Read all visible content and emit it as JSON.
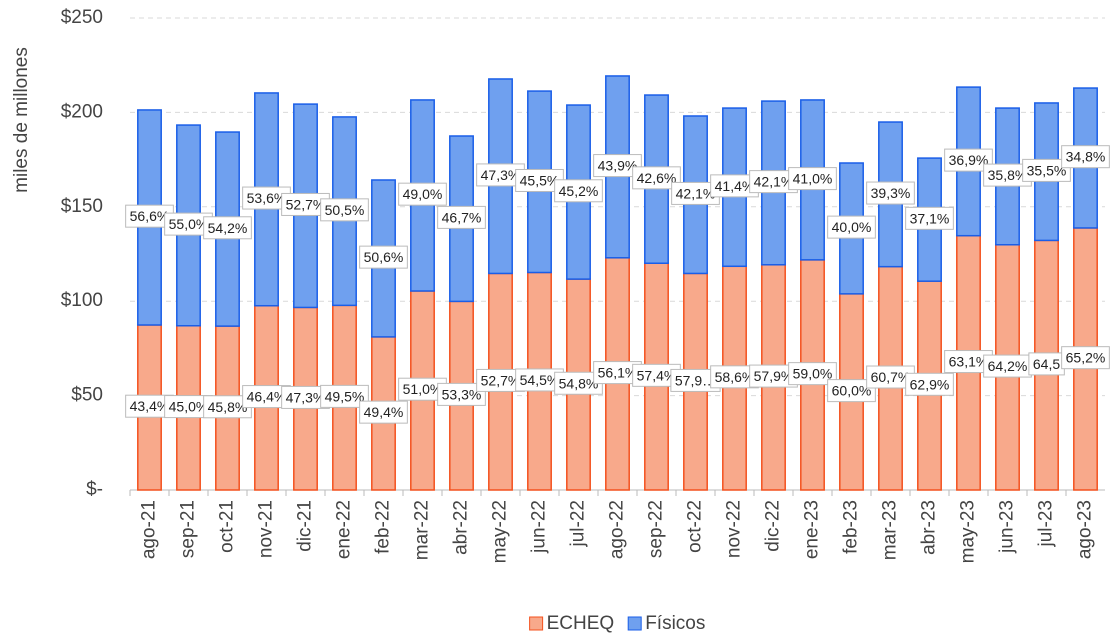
{
  "chart_data": {
    "type": "stacked_bar",
    "y_label": "miles de millones",
    "categories": [
      "ago-21",
      "sep-21",
      "oct-21",
      "nov-21",
      "dic-21",
      "ene-22",
      "feb-22",
      "mar-22",
      "abr-22",
      "may-22",
      "jun-22",
      "jul-22",
      "ago-22",
      "sep-22",
      "oct-22",
      "nov-22",
      "dic-22",
      "ene-23",
      "feb-23",
      "mar-23",
      "abr-23",
      "may-23",
      "jun-23",
      "jul-23",
      "ago-23"
    ],
    "series": [
      {
        "name": "ECHEQ",
        "color": "#f8a98b",
        "stroke": "#f4511e",
        "values": [
          87.4,
          87.0,
          86.8,
          97.6,
          96.7,
          97.8,
          81.1,
          105.4,
          99.9,
          114.7,
          115.2,
          111.7,
          123.0,
          120.1,
          114.7,
          118.5,
          119.3,
          121.9,
          103.9,
          118.3,
          110.6,
          134.7,
          129.9,
          132.2,
          138.8
        ],
        "data_labels": [
          "43,4%",
          "45,0%",
          "45,8%",
          "46,4%",
          "47,3%",
          "49,5%",
          "49,4%",
          "51,0%",
          "53,3%",
          "52,7%",
          "54,5%",
          "54,8%",
          "56,1%",
          "57,4%",
          "57,9…",
          "58,6%",
          "57,9%",
          "59,0%",
          "60,0%",
          "60,7%",
          "62,9%",
          "63,1%",
          "64,2%",
          "64,5",
          "65,2%"
        ]
      },
      {
        "name": "Físicos",
        "color": "#6fa0ef",
        "stroke": "#1a5ee8",
        "values": [
          113.9,
          106.3,
          102.8,
          112.7,
          107.7,
          99.8,
          83.1,
          101.2,
          87.6,
          103.0,
          96.1,
          92.2,
          96.3,
          89.1,
          83.4,
          83.8,
          86.7,
          84.7,
          69.3,
          76.6,
          65.2,
          78.7,
          72.4,
          72.8,
          74.1
        ],
        "data_labels": [
          "56,6%",
          "55,0%",
          "54,2%",
          "53,6%",
          "52,7%",
          "50,5%",
          "50,6%",
          "49,0%",
          "46,7%",
          "47,3%",
          "45,5%",
          "45,2%",
          "43,9%",
          "42,6%",
          "42,1%",
          "41,4%",
          "42,1%",
          "41,0%",
          "40,0%",
          "39,3%",
          "37,1%",
          "36,9%",
          "35,8%",
          "35,5%",
          "34,8%"
        ]
      }
    ],
    "ylim": [
      0,
      250
    ],
    "yticks": [
      {
        "value": 0,
        "label": "$-"
      },
      {
        "value": 50,
        "label": "$50"
      },
      {
        "value": 100,
        "label": "$100"
      },
      {
        "value": 150,
        "label": "$150"
      },
      {
        "value": 200,
        "label": "$200"
      },
      {
        "value": 250,
        "label": "$250"
      }
    ],
    "grid": true
  }
}
